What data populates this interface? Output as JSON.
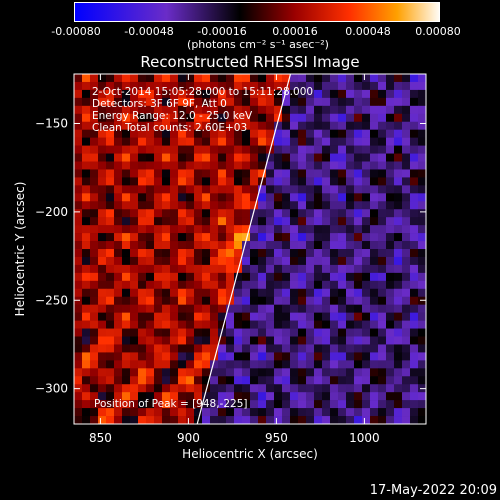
{
  "colorbar": {
    "ticks": [
      "-0.00080",
      "-0.00048",
      "-0.00016",
      "0.00016",
      "0.00048",
      "0.00080"
    ],
    "unit_label": "(photons cm⁻² s⁻¹ asec⁻²)",
    "range": [
      -0.0008,
      0.0008
    ],
    "colormap": [
      "#0000ff",
      "#6a2cc8",
      "#000000",
      "#9a0000",
      "#ff3000",
      "#ffa000",
      "#ffffff"
    ]
  },
  "title": "Reconstructed RHESSI Image",
  "annotations": {
    "time": "2-Oct-2014 15:05:28.000 to 15:11:28.000",
    "detectors": "Detectors: 3F 6F 9F, Att 0",
    "energy": "Energy Range: 12.0 - 25.0 keV",
    "clean": "Clean    Total counts: 2.60E+03",
    "peak": "Position of Peak = [948,-225]"
  },
  "footer": "17-May-2022 20:09",
  "chart_data": {
    "type": "heatmap",
    "xlabel": "Heliocentric X (arcsec)",
    "ylabel": "Heliocentric Y (arcsec)",
    "xlim": [
      835,
      1035
    ],
    "ylim": [
      -320,
      -122
    ],
    "xticks": [
      850,
      900,
      950,
      1000
    ],
    "yticks": [
      -150,
      -200,
      -250,
      -300
    ],
    "peak": [
      948,
      -225
    ],
    "limb_line": [
      [
        905,
        -320
      ],
      [
        958,
        -122
      ]
    ]
  }
}
